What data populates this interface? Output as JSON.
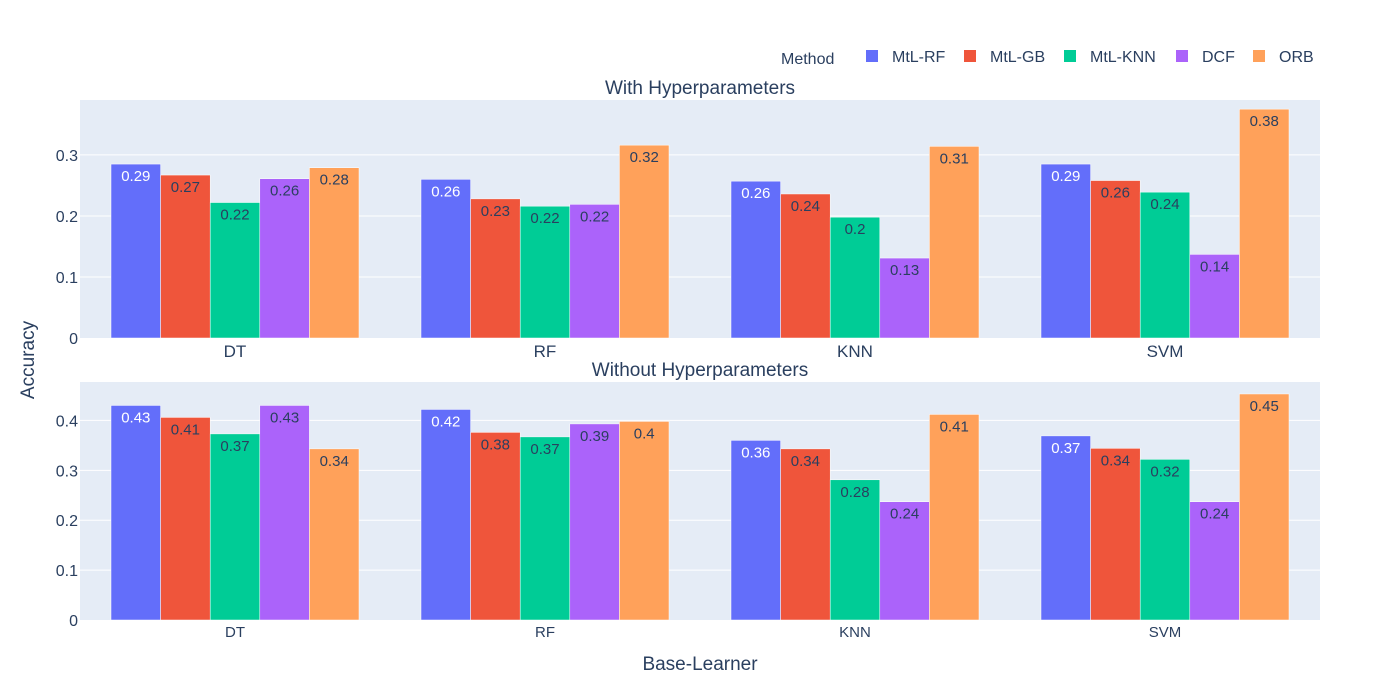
{
  "legend": {
    "title": "Method"
  },
  "colors": {
    "MtL-RF": "#636efa",
    "MtL-GB": "#ef553b",
    "MtL-KNN": "#00cc96",
    "DCF": "#ab63fa",
    "ORB": "#ffa15a",
    "plot_bg": "#e5ecf6"
  },
  "chart_data": [
    {
      "type": "bar",
      "title": "With Hyperparameters",
      "categories": [
        "DT",
        "RF",
        "KNN",
        "SVM"
      ],
      "ylim": [
        0,
        0.39
      ],
      "yticks": [
        0,
        0.1,
        0.2,
        0.3
      ],
      "ytick_labels": [
        "0",
        "0.1",
        "0.2",
        "0.3"
      ],
      "grid": true,
      "series": [
        {
          "name": "MtL-RF",
          "values": [
            0.285,
            0.26,
            0.257,
            0.285
          ],
          "labels": [
            "0.29",
            "0.26",
            "0.26",
            "0.29"
          ]
        },
        {
          "name": "MtL-GB",
          "values": [
            0.267,
            0.228,
            0.236,
            0.258
          ],
          "labels": [
            "0.27",
            "0.23",
            "0.24",
            "0.26"
          ]
        },
        {
          "name": "MtL-KNN",
          "values": [
            0.222,
            0.216,
            0.198,
            0.239
          ],
          "labels": [
            "0.22",
            "0.22",
            "0.2",
            "0.24"
          ]
        },
        {
          "name": "DCF",
          "values": [
            0.261,
            0.219,
            0.131,
            0.137
          ],
          "labels": [
            "0.26",
            "0.22",
            "0.13",
            "0.14"
          ]
        },
        {
          "name": "ORB",
          "values": [
            0.279,
            0.316,
            0.314,
            0.375
          ],
          "labels": [
            "0.28",
            "0.32",
            "0.31",
            "0.38"
          ]
        }
      ]
    },
    {
      "type": "bar",
      "title": "Without Hyperparameters",
      "categories": [
        "DT",
        "RF",
        "KNN",
        "SVM"
      ],
      "ylim": [
        0,
        0.477
      ],
      "yticks": [
        0,
        0.1,
        0.2,
        0.3,
        0.4
      ],
      "ytick_labels": [
        "0",
        "0.1",
        "0.2",
        "0.3",
        "0.4"
      ],
      "grid": true,
      "series": [
        {
          "name": "MtL-RF",
          "values": [
            0.43,
            0.422,
            0.36,
            0.369
          ],
          "labels": [
            "0.43",
            "0.42",
            "0.36",
            "0.37"
          ]
        },
        {
          "name": "MtL-GB",
          "values": [
            0.406,
            0.376,
            0.343,
            0.344
          ],
          "labels": [
            "0.41",
            "0.38",
            "0.34",
            "0.34"
          ]
        },
        {
          "name": "MtL-KNN",
          "values": [
            0.373,
            0.367,
            0.281,
            0.322
          ],
          "labels": [
            "0.37",
            "0.37",
            "0.28",
            "0.32"
          ]
        },
        {
          "name": "DCF",
          "values": [
            0.43,
            0.393,
            0.237,
            0.237
          ],
          "labels": [
            "0.43",
            "0.39",
            "0.24",
            "0.24"
          ]
        },
        {
          "name": "ORB",
          "values": [
            0.343,
            0.398,
            0.412,
            0.453
          ],
          "labels": [
            "0.34",
            "0.4",
            "0.41",
            "0.45"
          ]
        }
      ]
    }
  ],
  "axes": {
    "xlabel": "Base-Learner",
    "ylabel": "Accuracy"
  }
}
